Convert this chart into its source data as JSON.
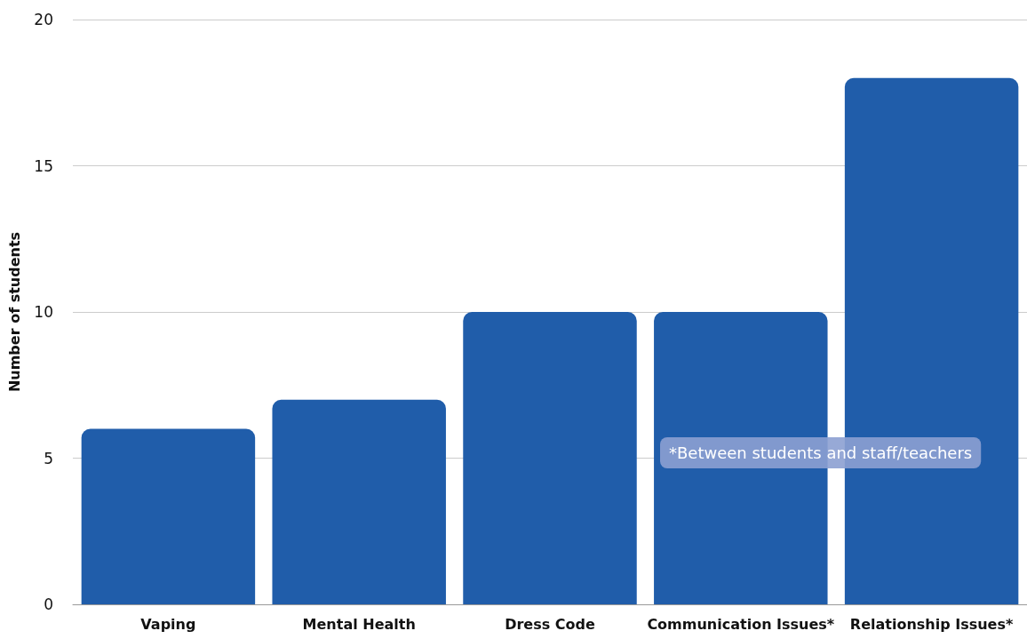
{
  "chart_data": {
    "type": "bar",
    "ylabel": "Number of students",
    "categories": [
      "Vaping",
      "Mental Health",
      "Dress Code",
      "Communication Issues*",
      "Relationship Issues*"
    ],
    "values": [
      6,
      7,
      10,
      10,
      18
    ],
    "color": "#205daa",
    "ylim": [
      0,
      20
    ],
    "yticks": [
      0,
      5,
      10,
      15,
      20
    ],
    "grid": "y",
    "annotations": [
      "*Between students and staff/teachers"
    ]
  }
}
